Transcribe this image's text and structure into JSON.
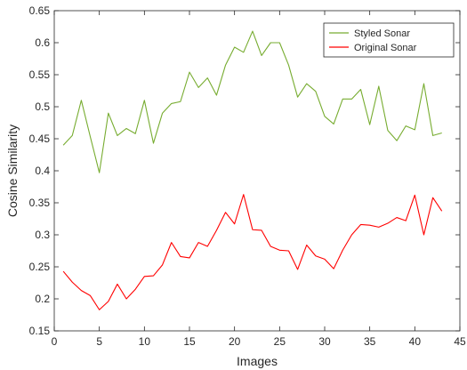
{
  "chart_data": {
    "type": "line",
    "xlabel": "Images",
    "ylabel": "Cosine Similarity",
    "xlim": [
      0,
      45
    ],
    "ylim": [
      0.15,
      0.65
    ],
    "xticks": [
      0,
      5,
      10,
      15,
      20,
      25,
      30,
      35,
      40,
      45
    ],
    "yticks": [
      0.15,
      0.2,
      0.25,
      0.3,
      0.35,
      0.4,
      0.45,
      0.5,
      0.55,
      0.6,
      0.65
    ],
    "grid": false,
    "legend_position": "top-right",
    "x": [
      1,
      2,
      3,
      4,
      5,
      6,
      7,
      8,
      9,
      10,
      11,
      12,
      13,
      14,
      15,
      16,
      17,
      18,
      19,
      20,
      21,
      22,
      23,
      24,
      25,
      26,
      27,
      28,
      29,
      30,
      31,
      32,
      33,
      34,
      35,
      36,
      37,
      38,
      39,
      40,
      41,
      42,
      43
    ],
    "series": [
      {
        "name": "Styled Sonar",
        "color": "#77ac30",
        "values": [
          0.44,
          0.455,
          0.51,
          0.453,
          0.397,
          0.49,
          0.455,
          0.466,
          0.458,
          0.51,
          0.443,
          0.49,
          0.505,
          0.508,
          0.554,
          0.53,
          0.545,
          0.518,
          0.565,
          0.593,
          0.585,
          0.618,
          0.58,
          0.6,
          0.6,
          0.565,
          0.515,
          0.536,
          0.524,
          0.485,
          0.473,
          0.512,
          0.512,
          0.527,
          0.472,
          0.532,
          0.463,
          0.447,
          0.47,
          0.464,
          0.536,
          0.455,
          0.459
        ]
      },
      {
        "name": "Original Sonar",
        "color": "#ff0000",
        "values": [
          0.243,
          0.226,
          0.213,
          0.205,
          0.183,
          0.196,
          0.223,
          0.2,
          0.215,
          0.235,
          0.236,
          0.253,
          0.288,
          0.266,
          0.264,
          0.288,
          0.282,
          0.307,
          0.335,
          0.317,
          0.363,
          0.308,
          0.307,
          0.282,
          0.276,
          0.275,
          0.246,
          0.284,
          0.267,
          0.262,
          0.247,
          0.276,
          0.3,
          0.316,
          0.315,
          0.312,
          0.318,
          0.327,
          0.322,
          0.362,
          0.3,
          0.358,
          0.337
        ]
      }
    ]
  }
}
